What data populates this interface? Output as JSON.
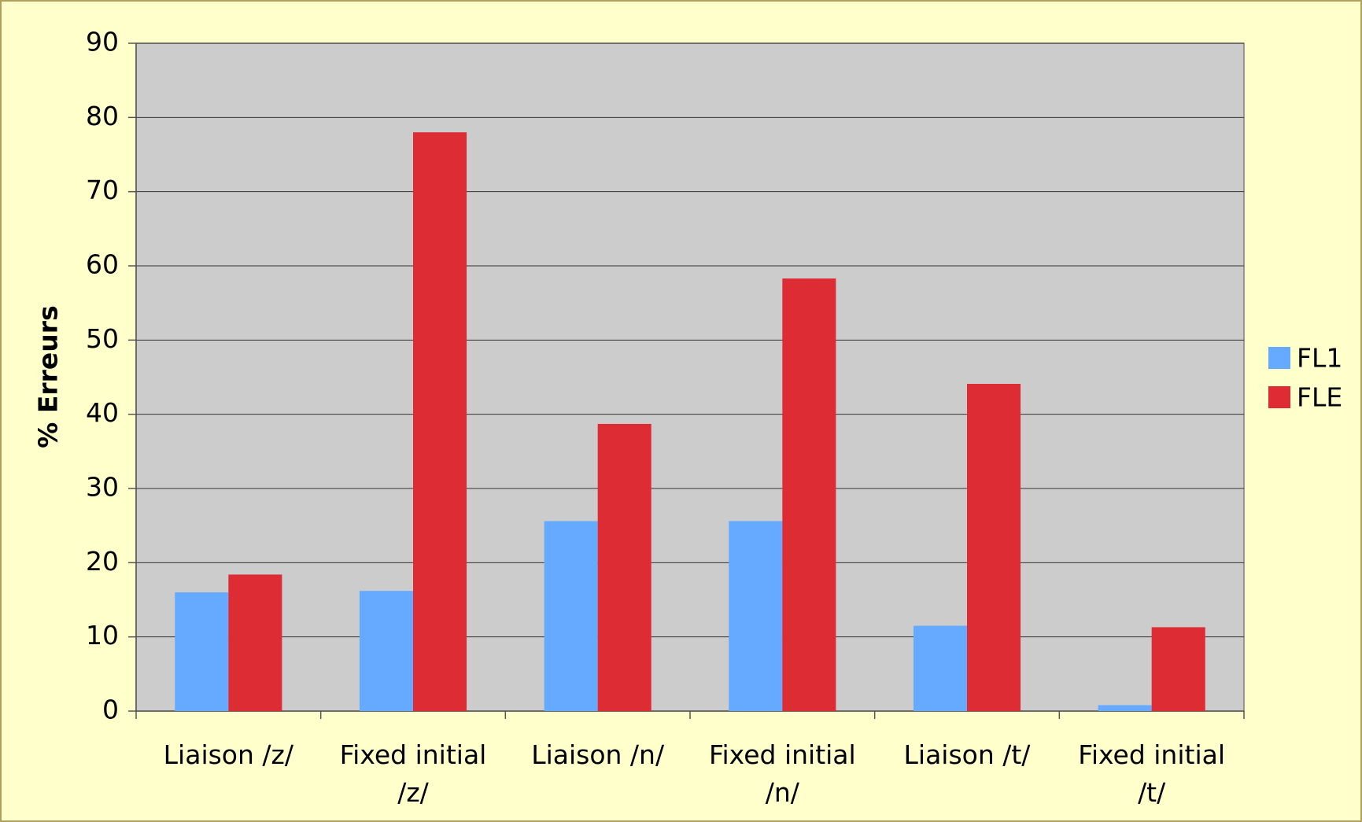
{
  "chart_data": {
    "type": "bar",
    "y_label": "% Erreurs",
    "categories": [
      "Liaison /z/",
      "Fixed initial /z/",
      "Liaison /n/",
      "Fixed initial /n/",
      "Liaison /t/",
      "Fixed initial /t/"
    ],
    "series": [
      {
        "name": "FL1",
        "color": "#66aaff",
        "values": [
          16,
          16.2,
          25.6,
          25.6,
          11.5,
          0.8
        ]
      },
      {
        "name": "FLE",
        "color": "#dd2c33",
        "values": [
          18.4,
          78,
          38.7,
          58.3,
          44.1,
          11.3
        ]
      }
    ],
    "ylim": [
      0,
      90
    ],
    "yticks": [
      0,
      10,
      20,
      30,
      40,
      50,
      60,
      70,
      80,
      90
    ],
    "grid": true,
    "legend": "right"
  }
}
